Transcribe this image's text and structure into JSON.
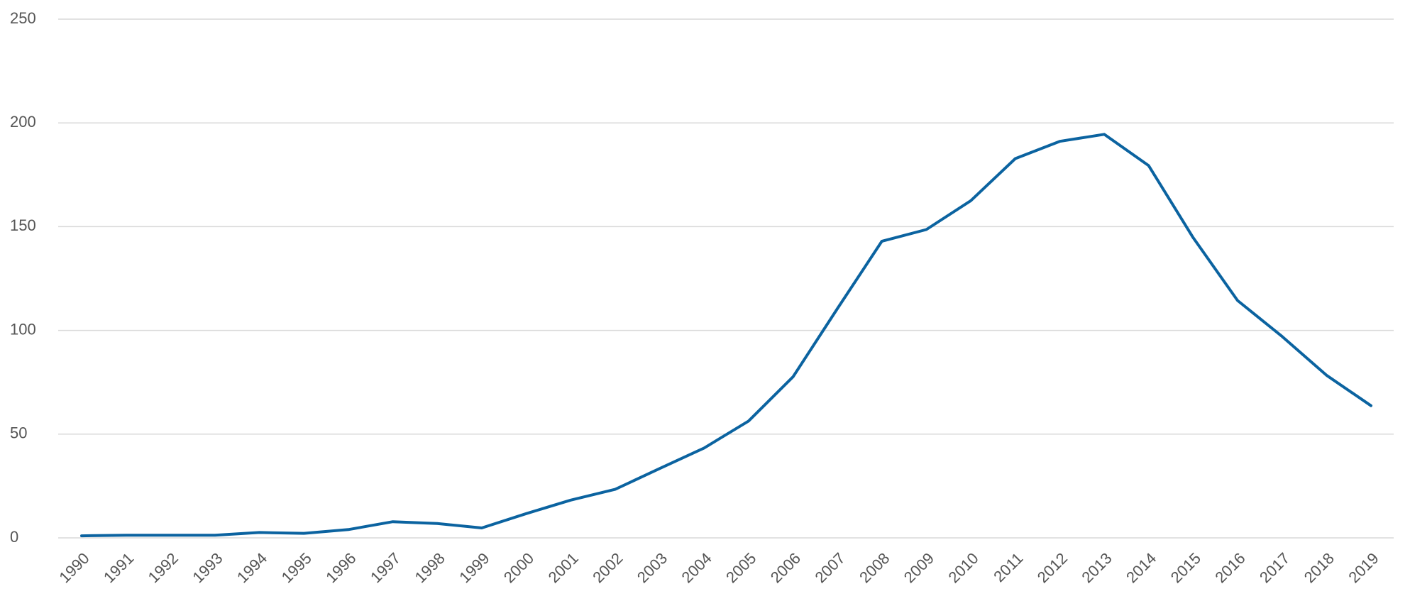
{
  "chart_data": {
    "type": "line",
    "categories": [
      "1990",
      "1991",
      "1992",
      "1993",
      "1994",
      "1995",
      "1996",
      "1997",
      "1998",
      "1999",
      "2000",
      "2001",
      "2002",
      "2003",
      "2004",
      "2005",
      "2006",
      "2007",
      "2008",
      "2009",
      "2010",
      "2011",
      "2012",
      "2013",
      "2014",
      "2015",
      "2016",
      "2017",
      "2018",
      "2019"
    ],
    "values": [
      1,
      1.3,
      1.3,
      1.3,
      2.6,
      2.2,
      4,
      7.8,
      6.9,
      4.8,
      11.7,
      18.2,
      23.4,
      33.4,
      43.3,
      56.3,
      77.6,
      110.5,
      143,
      148.6,
      162.5,
      182.8,
      191.1,
      194.5,
      179.4,
      144.7,
      114.4,
      97.1,
      78.4,
      63.7
    ],
    "color": "#0b63a0",
    "ylim": [
      0,
      250
    ],
    "yticks": [
      0,
      50,
      100,
      150,
      200,
      250
    ],
    "grid": true
  }
}
